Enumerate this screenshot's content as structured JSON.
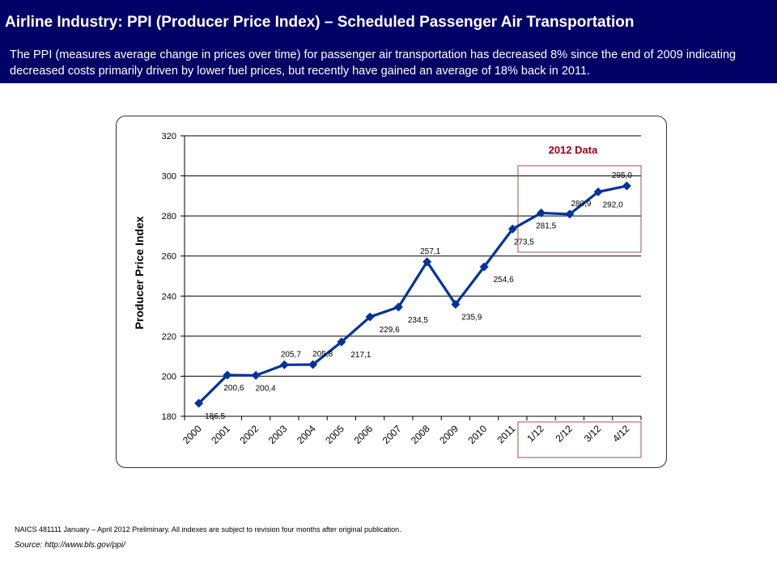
{
  "header": {
    "title": "Airline Industry:   PPI (Producer Price Index) – Scheduled Passenger Air Transportation",
    "subtitle": "The PPI (measures average change in prices over time) for passenger air transportation has decreased 8% since the end of 2009 indicating decreased costs primarily driven by lower fuel prices, but recently have gained an average of 18% back in 2011."
  },
  "chart_data": {
    "type": "line",
    "ylabel": "Producer Price Index",
    "xlabel": "",
    "ylim": [
      180,
      320
    ],
    "yticks": [
      180,
      200,
      220,
      240,
      260,
      280,
      300,
      320
    ],
    "grid": true,
    "categories": [
      "2000",
      "2001",
      "2002",
      "2003",
      "2004",
      "2005",
      "2006",
      "2007",
      "2008",
      "2009",
      "2010",
      "2011",
      "1/12",
      "2/12",
      "3/12",
      "4/12"
    ],
    "series": [
      {
        "values": [
          186.5,
          200.6,
          200.4,
          205.7,
          205.8,
          217.1,
          229.6,
          234.5,
          257.1,
          235.9,
          254.6,
          273.5,
          281.5,
          280.9,
          292.0,
          295.0
        ],
        "data_labels": [
          "186,5",
          "200,6",
          "200,4",
          "205,7",
          "205,8",
          "217,1",
          "229,6",
          "234,5",
          "257,1",
          "235,9",
          "254,6",
          "273,5",
          "281,5",
          "280,9",
          "292,0",
          "295,0"
        ],
        "color": "#003399"
      }
    ],
    "annotation": {
      "text": "2012 Data",
      "color": "#99001a",
      "categories": [
        "1/12",
        "2/12",
        "3/12",
        "4/12"
      ]
    }
  },
  "footnote": "NAICS 481111  January – April  2012  Preliminary.  All indexes are subject to revision four months after original publication.",
  "source": "Source:  http://www.bls.gov/ppi/"
}
